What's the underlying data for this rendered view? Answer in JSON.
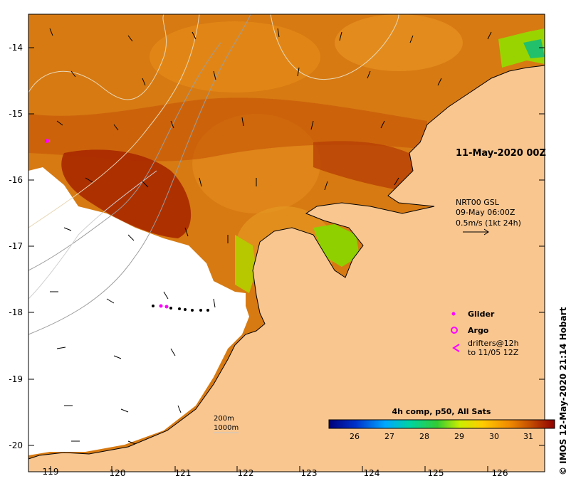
{
  "map": {
    "date_label": "11-May-2020 00Z",
    "wind_title": "NRT00 GSL",
    "wind_time": "09-May 06:00Z",
    "wind_scale": "0.5m/s (1kt 24h)",
    "x_ticks": [
      "119",
      "120",
      "121",
      "122",
      "123",
      "124",
      "125",
      "126"
    ],
    "y_ticks": [
      "-14",
      "-15",
      "-16",
      "-17",
      "-18",
      "-19",
      "-20"
    ],
    "contour_labels": [
      "200m",
      "1000m"
    ],
    "credit": "© IMOS 12-May-2020 21:14 Hobart"
  },
  "legend": {
    "glider": "Glider",
    "argo": "Argo",
    "drifters_line1": "drifters@12h",
    "drifters_line2": "to 11/05 12Z"
  },
  "colorbar": {
    "title": "4h comp, p50, All Sats",
    "ticks": [
      "26",
      "27",
      "28",
      "29",
      "30",
      "31"
    ]
  },
  "colors": {
    "land": "#f9c690",
    "warm": "#c85400",
    "hot": "#a81e00",
    "marker": "#ff00ff"
  }
}
